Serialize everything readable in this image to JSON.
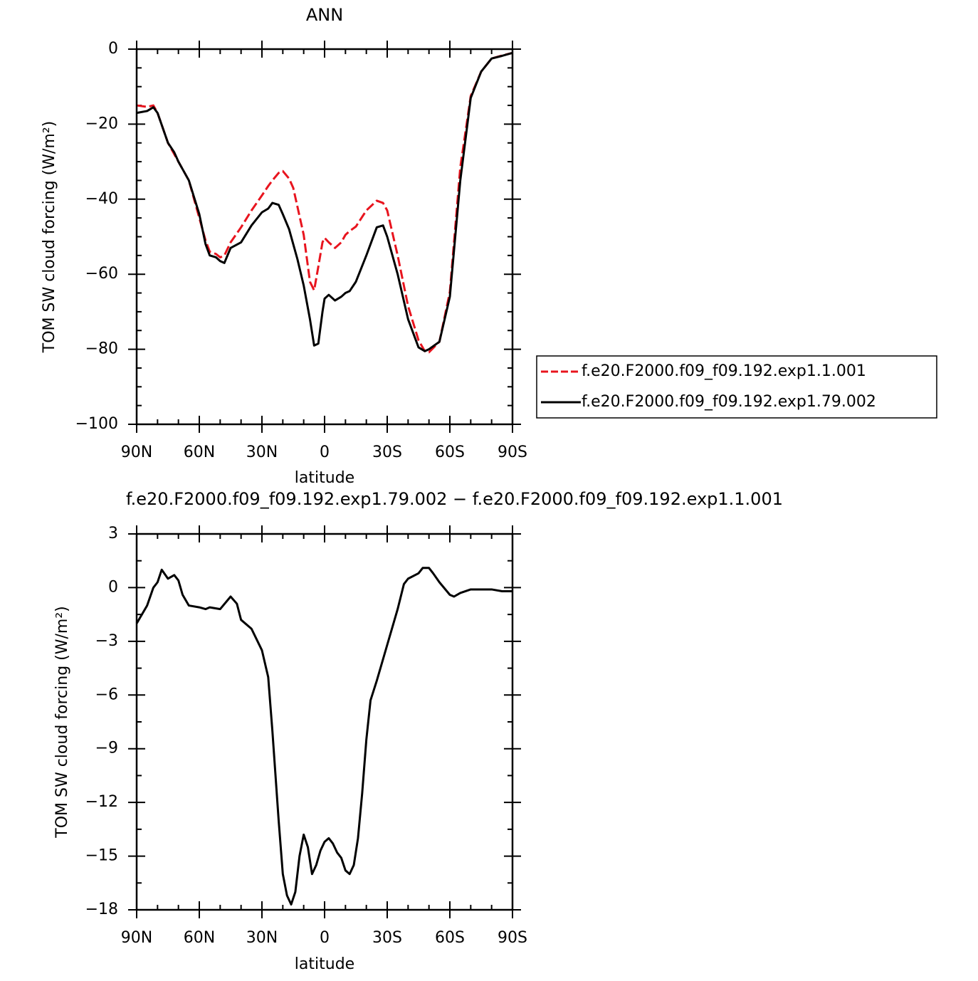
{
  "chart_data": [
    {
      "type": "line",
      "title": "ANN",
      "xlabel": "latitude",
      "ylabel": "TOM SW cloud forcing (W/m²)",
      "xlim": [
        90,
        -90
      ],
      "ylim": [
        0,
        -100
      ],
      "xticks": [
        {
          "value": 90,
          "label": "90N"
        },
        {
          "value": 60,
          "label": "60N"
        },
        {
          "value": 30,
          "label": "30N"
        },
        0,
        {
          "value": -30,
          "label": "30S"
        },
        {
          "value": -60,
          "label": "60S"
        },
        {
          "value": -90,
          "label": "90S"
        }
      ],
      "yticks": [
        0,
        {
          "value": -20,
          "label": "−20"
        },
        {
          "value": -40,
          "label": "−40"
        },
        {
          "value": -60,
          "label": "−60"
        },
        {
          "value": -80,
          "label": "−80"
        },
        {
          "value": -100,
          "label": "−100"
        }
      ],
      "legend": "right",
      "x": [
        90,
        85,
        82,
        80,
        75,
        72,
        70,
        65,
        60,
        57,
        55,
        52,
        50,
        48,
        45,
        40,
        35,
        30,
        27,
        25,
        22,
        20,
        17,
        15,
        13,
        10,
        7,
        5,
        3,
        1,
        0,
        -2,
        -5,
        -8,
        -10,
        -12,
        -15,
        -20,
        -25,
        -28,
        -30,
        -35,
        -40,
        -45,
        -48,
        -50,
        -55,
        -60,
        -65,
        -70,
        -75,
        -80,
        -85,
        -90
      ],
      "series": [
        {
          "name": "f.e20.F2000.f09_f09.192.exp1.1.001",
          "color": "#e8141e",
          "dash": "dashed",
          "values": [
            -15,
            -15.4,
            -15,
            -17,
            -25,
            -28,
            -30,
            -35,
            -45,
            -51,
            -54,
            -54.6,
            -55.5,
            -55,
            -51.5,
            -47.5,
            -43,
            -39,
            -36.5,
            -35,
            -33,
            -32.5,
            -34.5,
            -37,
            -42,
            -49.5,
            -62,
            -64.3,
            -58,
            -51.5,
            -50.3,
            -51.5,
            -53,
            -51.5,
            -49.5,
            -48.5,
            -47.3,
            -43,
            -40.4,
            -41,
            -43,
            -55,
            -68.5,
            -77.6,
            -80.5,
            -80.8,
            -78,
            -64.7,
            -31.5,
            -12.5,
            -6,
            -2.5,
            -1.7,
            -1
          ]
        },
        {
          "name": "f.e20.F2000.f09_f09.192.exp1.79.002",
          "color": "#000000",
          "dash": "solid",
          "values": [
            -17,
            -16.5,
            -15.5,
            -17,
            -25,
            -27.5,
            -30,
            -35,
            -44,
            -52,
            -55,
            -55.5,
            -56.5,
            -57,
            -53,
            -51.5,
            -47,
            -43.5,
            -42.5,
            -41,
            -41.5,
            -44,
            -48,
            -52,
            -56,
            -63,
            -72,
            -79,
            -78.5,
            -70,
            -66.5,
            -65.5,
            -67,
            -66,
            -65,
            -64.5,
            -62,
            -55,
            -47.5,
            -47,
            -50,
            -60,
            -72,
            -79.5,
            -80.5,
            -80,
            -78,
            -66,
            -35,
            -13,
            -6,
            -2.5,
            -1.8,
            -1
          ]
        }
      ]
    },
    {
      "type": "line",
      "title": "f.e20.F2000.f09_f09.192.exp1.79.002 − f.e20.F2000.f09_f09.192.exp1.1.001",
      "xlabel": "latitude",
      "ylabel": "TOM SW cloud forcing (W/m²)",
      "xlim": [
        90,
        -90
      ],
      "ylim": [
        3,
        -18
      ],
      "xticks": [
        {
          "value": 90,
          "label": "90N"
        },
        {
          "value": 60,
          "label": "60N"
        },
        {
          "value": 30,
          "label": "30N"
        },
        0,
        {
          "value": -30,
          "label": "30S"
        },
        {
          "value": -60,
          "label": "60S"
        },
        {
          "value": -90,
          "label": "90S"
        }
      ],
      "yticks": [
        3,
        0,
        {
          "value": -3,
          "label": "−3"
        },
        {
          "value": -6,
          "label": "−6"
        },
        {
          "value": -9,
          "label": "−9"
        },
        {
          "value": -12,
          "label": "−12"
        },
        {
          "value": -15,
          "label": "−15"
        },
        {
          "value": -18,
          "label": "−18"
        }
      ],
      "x": [
        90,
        85,
        82,
        80,
        78,
        75,
        72,
        70,
        68,
        65,
        60,
        57,
        55,
        50,
        45,
        42,
        40,
        35,
        30,
        27,
        25,
        22,
        20,
        18,
        16,
        14,
        12,
        10,
        8,
        6,
        4,
        2,
        0,
        -2,
        -4,
        -6,
        -8,
        -10,
        -12,
        -14,
        -16,
        -18,
        -20,
        -22,
        -25,
        -30,
        -35,
        -38,
        -40,
        -45,
        -47,
        -50,
        -52,
        -55,
        -60,
        -62,
        -65,
        -70,
        -75,
        -80,
        -85,
        -90
      ],
      "series": [
        {
          "color": "#000000",
          "dash": "solid",
          "values": [
            -2,
            -1,
            0,
            0.3,
            1,
            0.5,
            0.7,
            0.4,
            -0.4,
            -1,
            -1.1,
            -1.2,
            -1.1,
            -1.2,
            -0.5,
            -0.9,
            -1.8,
            -2.3,
            -3.5,
            -5,
            -8,
            -13,
            -16,
            -17.2,
            -17.7,
            -17,
            -15,
            -13.8,
            -14.5,
            -16,
            -15.5,
            -14.7,
            -14.2,
            -14,
            -14.3,
            -14.8,
            -15.1,
            -15.8,
            -16,
            -15.5,
            -14,
            -11.5,
            -8.5,
            -6.3,
            -5.2,
            -3.2,
            -1.2,
            0.2,
            0.5,
            0.8,
            1.1,
            1.1,
            0.8,
            0.3,
            -0.4,
            -0.5,
            -0.3,
            -0.1,
            -0.1,
            -0.1,
            -0.2,
            -0.2
          ]
        }
      ]
    }
  ]
}
